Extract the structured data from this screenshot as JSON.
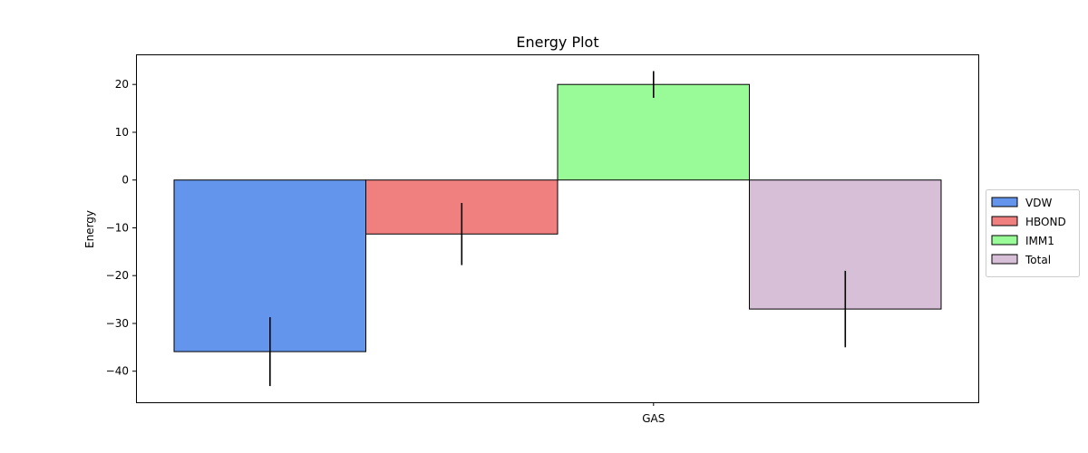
{
  "chart_data": {
    "type": "bar",
    "title": "Energy Plot",
    "xlabel": "",
    "ylabel": "Energy",
    "categories": [
      "GAS"
    ],
    "ylim": [
      -46.5,
      26.3
    ],
    "yticks": [
      20,
      10,
      0,
      -10,
      -20,
      -30,
      -40
    ],
    "ytick_labels": [
      "20",
      "10",
      "0",
      "−10",
      "−20",
      "−30",
      "−40"
    ],
    "grid": false,
    "legend_position": "right",
    "series": [
      {
        "name": "VDW",
        "values": [
          -35.9
        ],
        "error": [
          7.2
        ],
        "color": "#6495ed"
      },
      {
        "name": "HBOND",
        "values": [
          -11.3
        ],
        "error": [
          6.5
        ],
        "color": "#f08080"
      },
      {
        "name": "IMM1",
        "values": [
          20.0
        ],
        "error": [
          2.8
        ],
        "color": "#98fb98"
      },
      {
        "name": "Total",
        "values": [
          -27.0
        ],
        "error": [
          8.0
        ],
        "color": "#d8bfd8"
      }
    ]
  }
}
